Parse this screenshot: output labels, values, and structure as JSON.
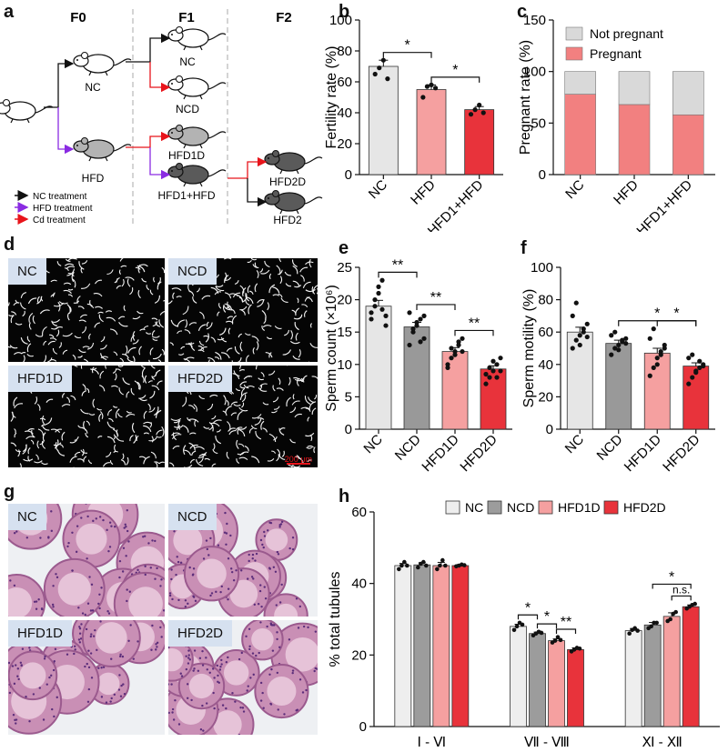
{
  "panels": {
    "a": "a",
    "b": "b",
    "c": "c",
    "d": "d",
    "e": "e",
    "f": "f",
    "g": "g",
    "h": "h"
  },
  "panel_a": {
    "generations": [
      "F0",
      "F1",
      "F2"
    ],
    "groups": {
      "nc": "NC",
      "hfd": "HFD",
      "f1_nc": "NC",
      "f1_ncd": "NCD",
      "f1_hfd1d": "HFD1D",
      "f1_hfd1hfd": "HFD1+HFD",
      "f2_hfd2d": "HFD2D",
      "f2_hfd2": "HFD2"
    },
    "legend": [
      {
        "label": "NC treatment",
        "color": "#111111"
      },
      {
        "label": "HFD treatment",
        "color": "#8a2be2"
      },
      {
        "label": "Cd treatment",
        "color": "#e8141b"
      }
    ],
    "mouse_colors": {
      "white": "#ffffff",
      "grey": "#b3b3b3",
      "dark": "#5a5a5a"
    }
  },
  "panel_d": {
    "tiles": [
      "NC",
      "NCD",
      "HFD1D",
      "HFD2D"
    ],
    "scale_bar": "200 μm"
  },
  "panel_g": {
    "tiles": [
      "NC",
      "NCD",
      "HFD1D",
      "HFD2D"
    ]
  },
  "chart_data": [
    {
      "id": "b",
      "type": "bar",
      "ylabel": "Fertility rate (%)",
      "ylim": [
        0,
        100
      ],
      "yticks": [
        0,
        20,
        40,
        60,
        80,
        100
      ],
      "categories": [
        "NC",
        "HFD",
        "HFD1+HFD"
      ],
      "values": [
        70,
        55,
        42
      ],
      "errors": [
        4,
        3,
        2
      ],
      "colors": [
        "#e6e6e6",
        "#f5a0a0",
        "#e8333b"
      ],
      "points": [
        [
          65,
          69,
          74,
          62
        ],
        [
          50,
          57,
          58,
          56
        ],
        [
          39,
          42,
          45,
          40
        ]
      ],
      "significance": [
        {
          "from": 0,
          "to": 1,
          "label": "*"
        },
        {
          "from": 1,
          "to": 2,
          "label": "*"
        }
      ]
    },
    {
      "id": "c",
      "type": "bar",
      "stacked": true,
      "ylabel": "Pregnant rate (%)",
      "ylim": [
        0,
        150
      ],
      "yticks": [
        0,
        50,
        100,
        150
      ],
      "categories": [
        "NC",
        "HFD",
        "HFD1+HFD"
      ],
      "series": [
        {
          "name": "Pregnant",
          "values": [
            78,
            68,
            58
          ],
          "color": "#f28080"
        },
        {
          "name": "Not pregnant",
          "values": [
            22,
            32,
            42
          ],
          "color": "#d9d9d9"
        }
      ],
      "legend": "top"
    },
    {
      "id": "e",
      "type": "bar",
      "ylabel": "Sperm count (×10⁶)",
      "ylim": [
        0,
        25
      ],
      "yticks": [
        0,
        5,
        10,
        15,
        20,
        25
      ],
      "categories": [
        "NC",
        "NCD",
        "HFD1D",
        "HFD2D"
      ],
      "values": [
        19,
        15.8,
        12,
        9.3
      ],
      "errors": [
        0.9,
        0.7,
        0.6,
        0.5
      ],
      "colors": [
        "#e6e6e6",
        "#999999",
        "#f5a0a0",
        "#e8333b"
      ],
      "points": [
        [
          17,
          19,
          21,
          23,
          16,
          18,
          20,
          22,
          18.5,
          17.5
        ],
        [
          13,
          15,
          16,
          17,
          14,
          18,
          15.5,
          16.5,
          13.5,
          17.5
        ],
        [
          9.5,
          11,
          12,
          13,
          14,
          10,
          12.5,
          11.5,
          13.5,
          12
        ],
        [
          7,
          8,
          9,
          10,
          11,
          8.5,
          9.5,
          10.5,
          8,
          9
        ]
      ],
      "significance": [
        {
          "from": 0,
          "to": 1,
          "label": "**"
        },
        {
          "from": 1,
          "to": 2,
          "label": "**"
        },
        {
          "from": 2,
          "to": 3,
          "label": "**"
        }
      ]
    },
    {
      "id": "f",
      "type": "bar",
      "ylabel": "Sperm motility (%)",
      "ylim": [
        0,
        100
      ],
      "yticks": [
        0,
        20,
        40,
        60,
        80,
        100
      ],
      "categories": [
        "NC",
        "NCD",
        "HFD1D",
        "HFD2D"
      ],
      "values": [
        60,
        53,
        47,
        39
      ],
      "errors": [
        3,
        2,
        3,
        2
      ],
      "colors": [
        "#e6e6e6",
        "#999999",
        "#f5a0a0",
        "#e8333b"
      ],
      "points": [
        [
          50,
          55,
          58,
          62,
          65,
          70,
          78,
          52,
          60,
          57
        ],
        [
          46,
          50,
          52,
          54,
          56,
          58,
          60,
          49,
          55,
          53
        ],
        [
          33,
          38,
          44,
          48,
          52,
          56,
          62,
          40,
          46,
          50
        ],
        [
          28,
          32,
          36,
          38,
          40,
          44,
          46,
          35,
          42,
          39
        ]
      ],
      "significance": [
        {
          "from": 1,
          "to": 3,
          "label": "*"
        },
        {
          "from": 2,
          "to": 3,
          "label": "*"
        }
      ]
    },
    {
      "id": "h",
      "type": "bar",
      "ylabel": "% total tubules",
      "ylim": [
        0,
        60
      ],
      "yticks": [
        0,
        20,
        40,
        60
      ],
      "categories": [
        "Ⅰ - Ⅵ",
        "Ⅶ - Ⅷ",
        "Ⅺ - Ⅻ"
      ],
      "series": [
        {
          "name": "NC",
          "values": [
            45,
            28,
            26.8
          ],
          "errors": [
            0.6,
            0.6,
            0.6
          ],
          "color": "#eeeeee",
          "points": [
            [
              44,
              45,
              46,
              45
            ],
            [
              27,
              28,
              29,
              28.5
            ],
            [
              26,
              27,
              27.5,
              26.8
            ]
          ]
        },
        {
          "name": "NCD",
          "values": [
            45.2,
            26,
            28.4
          ],
          "errors": [
            0.6,
            0.4,
            0.7
          ],
          "color": "#9c9c9c",
          "points": [
            [
              44.5,
              45.5,
              46,
              45
            ],
            [
              25.5,
              26,
              26.5,
              26.2
            ],
            [
              27.5,
              28,
              29,
              29
            ]
          ]
        },
        {
          "name": "HFD1D",
          "values": [
            45,
            24,
            30.8
          ],
          "errors": [
            0.9,
            0.5,
            1
          ],
          "color": "#f5a0a0",
          "points": [
            [
              44,
              45,
              46.5,
              45
            ],
            [
              23.5,
              24,
              25,
              24.2
            ],
            [
              29.5,
              30,
              31.5,
              32
            ]
          ]
        },
        {
          "name": "HFD2D",
          "values": [
            45,
            21.5,
            33.5
          ],
          "errors": [
            0.3,
            0.5,
            0.5
          ],
          "color": "#e8333b",
          "points": [
            [
              44.8,
              45,
              45.3,
              45.1
            ],
            [
              21,
              21.5,
              22,
              21.8
            ],
            [
              33,
              33.5,
              34,
              34.3
            ]
          ]
        }
      ],
      "significance": [
        {
          "group": 1,
          "from": 0,
          "to": 1,
          "label": "*"
        },
        {
          "group": 1,
          "from": 1,
          "to": 2,
          "label": "*"
        },
        {
          "group": 1,
          "from": 2,
          "to": 3,
          "label": "**"
        },
        {
          "group": 2,
          "from": 1,
          "to": 3,
          "label": "*"
        },
        {
          "group": 2,
          "from": 2,
          "to": 3,
          "label": "n.s."
        }
      ]
    }
  ]
}
